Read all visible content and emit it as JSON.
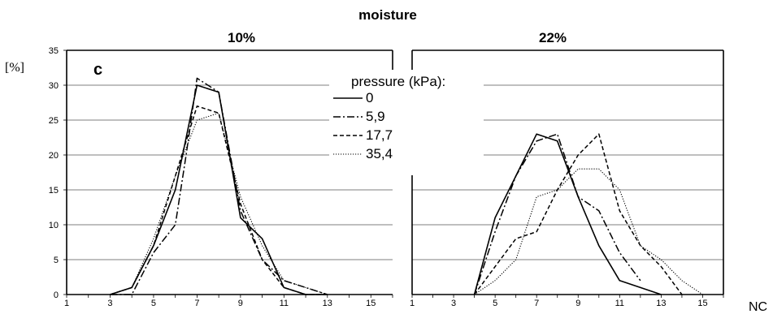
{
  "title": "moisture",
  "ylabel": "[%]",
  "xlabel": "NC",
  "panel_letter": "c",
  "legend_title": "pressure (kPa):",
  "x_ticks": [
    "1",
    "3",
    "5",
    "7",
    "9",
    "11",
    "13",
    "15"
  ],
  "y_ticks": [
    "0",
    "5",
    "10",
    "15",
    "20",
    "25",
    "30",
    "35"
  ],
  "chart_data": [
    {
      "type": "line",
      "title": "10%",
      "xlim": [
        1,
        16
      ],
      "ylim": [
        0,
        35
      ],
      "grid": true,
      "series": [
        {
          "name": "0",
          "style": "solid",
          "x": [
            3,
            4,
            5,
            6,
            7,
            8,
            9,
            10,
            11,
            12,
            13
          ],
          "y": [
            0,
            1,
            7,
            15,
            30,
            29,
            11,
            8,
            1,
            0,
            0
          ]
        },
        {
          "name": "5,9",
          "style": "dashdot",
          "x": [
            3,
            4,
            5,
            6,
            6.5,
            7,
            8,
            9,
            10,
            11,
            12,
            13
          ],
          "y": [
            0,
            0,
            6,
            10,
            20,
            31,
            29,
            12,
            5,
            2,
            1,
            0
          ]
        },
        {
          "name": "17,7",
          "style": "dashed",
          "x": [
            3,
            4,
            5,
            6,
            7,
            8,
            9,
            10,
            11,
            12,
            13
          ],
          "y": [
            0,
            1,
            7,
            17,
            27,
            26,
            13,
            5,
            1,
            0,
            0
          ]
        },
        {
          "name": "35,4",
          "style": "dotted",
          "x": [
            3,
            4,
            5,
            6,
            7,
            8,
            9,
            10,
            11,
            12,
            13
          ],
          "y": [
            0,
            1,
            8,
            17,
            25,
            26,
            14,
            7,
            2,
            1,
            0
          ]
        }
      ]
    },
    {
      "type": "line",
      "title": "22%",
      "xlim": [
        1,
        16
      ],
      "ylim": [
        0,
        35
      ],
      "grid": true,
      "series": [
        {
          "name": "0",
          "style": "solid",
          "x": [
            4,
            5,
            6,
            7,
            8,
            9,
            10,
            11,
            12,
            13
          ],
          "y": [
            0,
            11,
            17,
            23,
            22,
            14,
            7,
            2,
            1,
            0
          ]
        },
        {
          "name": "5,9",
          "style": "dashdot",
          "x": [
            4,
            5,
            6,
            7,
            8,
            9,
            10,
            11,
            12
          ],
          "y": [
            0,
            9,
            17,
            22,
            23,
            14,
            12,
            6,
            2
          ]
        },
        {
          "name": "17,7",
          "style": "dashed",
          "x": [
            4,
            5,
            6,
            7,
            8,
            9,
            10,
            11,
            12,
            13,
            14
          ],
          "y": [
            0,
            4,
            8,
            9,
            15,
            20,
            23,
            12,
            7,
            4,
            0
          ]
        },
        {
          "name": "35,4",
          "style": "dotted",
          "x": [
            4,
            5,
            6,
            7,
            8,
            9,
            10,
            11,
            12,
            13,
            14,
            15
          ],
          "y": [
            0,
            2,
            5,
            14,
            15,
            18,
            18,
            15,
            7,
            5,
            2,
            0
          ]
        }
      ]
    }
  ]
}
